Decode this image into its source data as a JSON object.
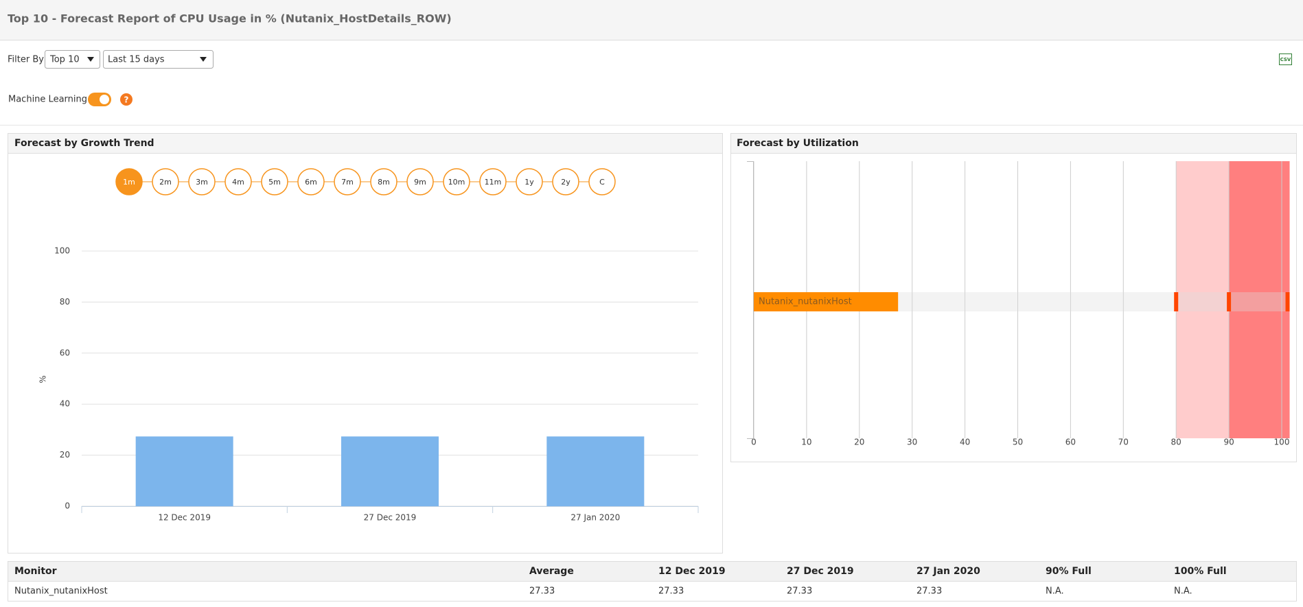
{
  "header": {
    "title": "Top 10 - Forecast Report of CPU Usage in % (Nutanix_HostDetails_ROW)"
  },
  "filters": {
    "label": "Filter By",
    "count": "Top 10",
    "range": "Last 15 days",
    "ml_label": "Machine Learning",
    "help": "?",
    "export": "CSV"
  },
  "chart_data": [
    {
      "type": "bar",
      "title": "Forecast by Growth Trend",
      "periods": [
        "1m",
        "2m",
        "3m",
        "4m",
        "5m",
        "6m",
        "7m",
        "8m",
        "9m",
        "10m",
        "11m",
        "1y",
        "2y",
        "C"
      ],
      "categories": [
        "12 Dec 2019",
        "27 Dec 2019",
        "27 Jan 2020"
      ],
      "values": [
        27.33,
        27.33,
        27.33
      ],
      "color": "#7cb5ec",
      "ylabel": "%",
      "ylim": [
        0,
        100
      ],
      "yticks": [
        0,
        20,
        40,
        60,
        80,
        100
      ],
      "grid": true
    },
    {
      "type": "hbar",
      "title": "Forecast by Utilization",
      "categories": [
        "Nutanix_nutanixHost"
      ],
      "values": [
        27.33
      ],
      "color": "#ff8c00",
      "xlim": [
        0,
        101.5
      ],
      "xticks": [
        0,
        10,
        20,
        30,
        40,
        50,
        60,
        70,
        80,
        90,
        100
      ],
      "grid": true,
      "plot_bands": [
        {
          "from": 80,
          "to": 90,
          "color": "#ffcccc"
        },
        {
          "from": 90,
          "to": 101.5,
          "color": "#ff7f7f"
        }
      ]
    }
  ],
  "table": {
    "columns": [
      "Monitor",
      "Average",
      "12 Dec 2019",
      "27 Dec 2019",
      "27 Jan 2020",
      "90% Full",
      "100% Full"
    ],
    "rows": [
      [
        "Nutanix_nutanixHost",
        "27.33",
        "27.33",
        "27.33",
        "27.33",
        "N.A.",
        "N.A."
      ]
    ]
  }
}
